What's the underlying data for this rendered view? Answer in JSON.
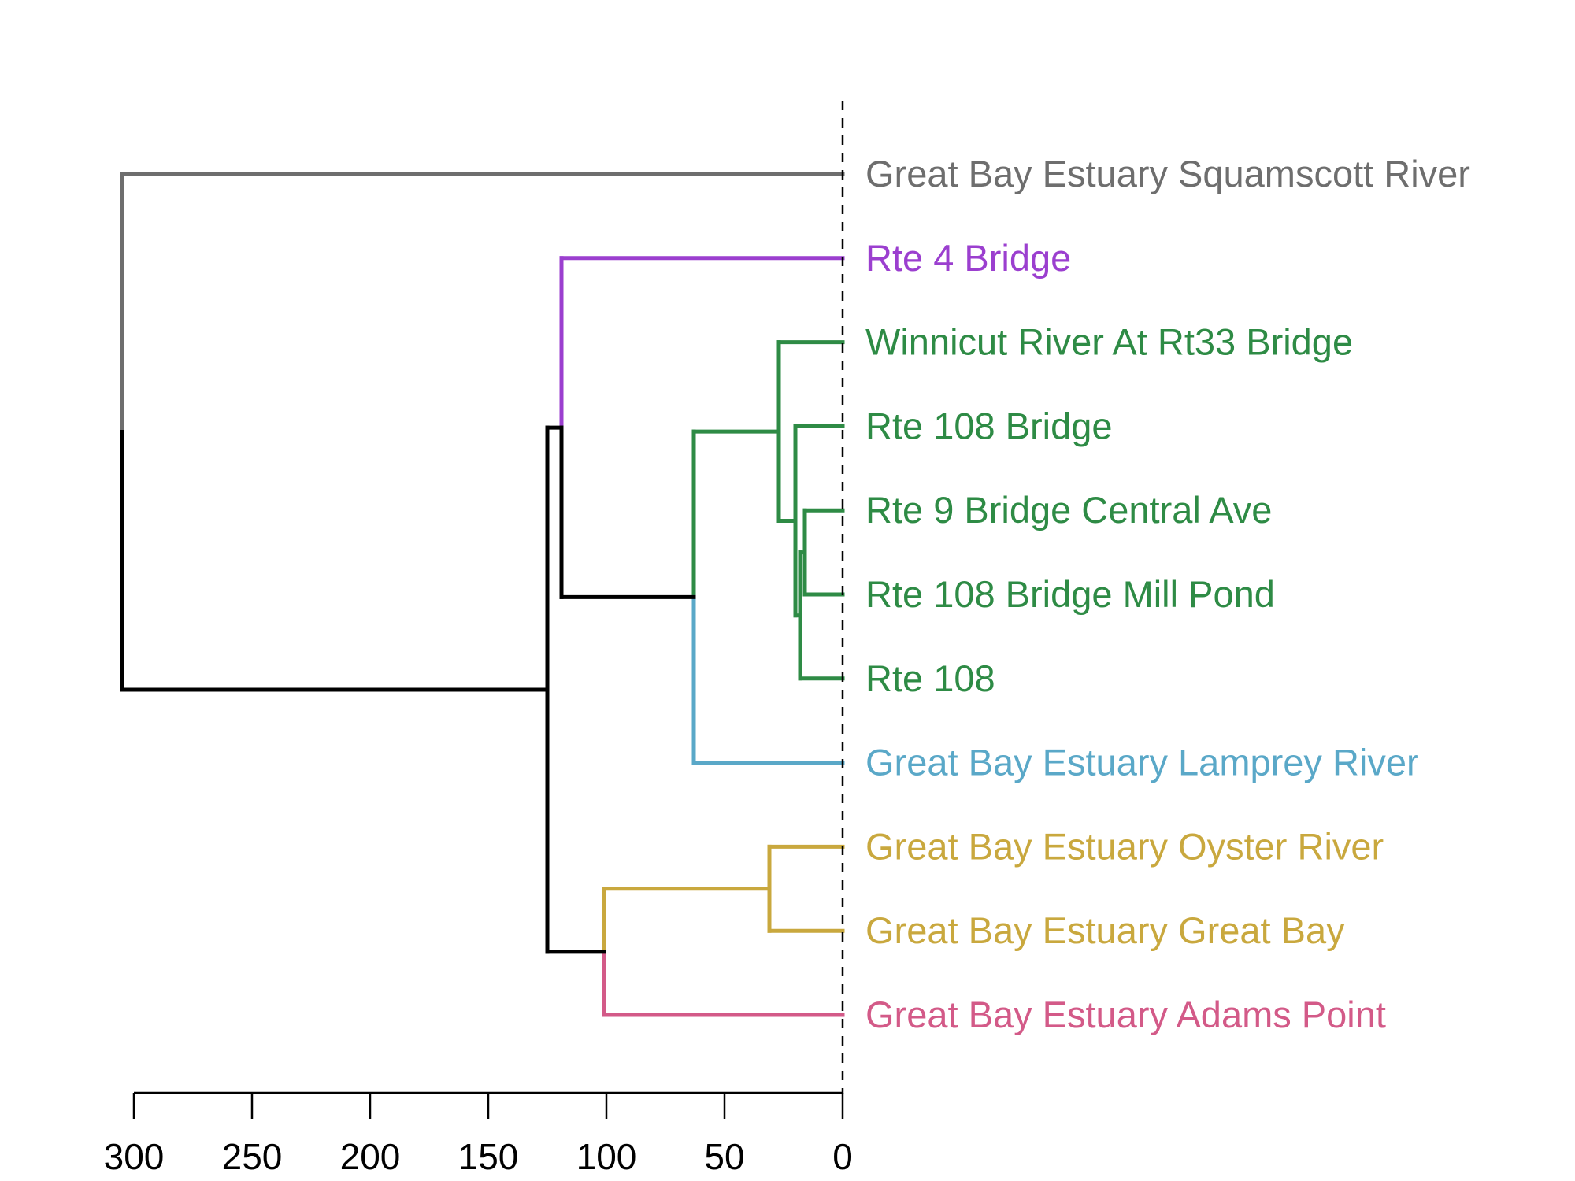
{
  "chart_data": {
    "type": "dendrogram",
    "orientation": "horizontal",
    "xlim": [
      0,
      300
    ],
    "x_ticks": [
      {
        "value": 300,
        "label": "300"
      },
      {
        "value": 250,
        "label": "250"
      },
      {
        "value": 200,
        "label": "200"
      },
      {
        "value": 150,
        "label": "150"
      },
      {
        "value": 100,
        "label": "100"
      },
      {
        "value": 50,
        "label": "50"
      },
      {
        "value": 0,
        "label": "0"
      }
    ],
    "cut_line": {
      "value": 0,
      "style": "dashed"
    },
    "leaves": [
      {
        "label": "Great Bay Estuary Squamscott River",
        "color": "#6e6e6e"
      },
      {
        "label": "Rte 4 Bridge",
        "color": "#9b3fcf"
      },
      {
        "label": "Winnicut River At Rt33 Bridge",
        "color": "#2e8b45"
      },
      {
        "label": "Rte 108 Bridge",
        "color": "#2e8b45"
      },
      {
        "label": "Rte 9 Bridge Central Ave",
        "color": "#2e8b45"
      },
      {
        "label": "Rte 108 Bridge Mill Pond",
        "color": "#2e8b45"
      },
      {
        "label": "Rte 108",
        "color": "#2e8b45"
      },
      {
        "label": "Great Bay Estuary Lamprey River",
        "color": "#5aa8c8"
      },
      {
        "label": "Great Bay Estuary Oyster River",
        "color": "#c9a83e"
      },
      {
        "label": "Great Bay Estuary Great Bay",
        "color": "#c9a83e"
      },
      {
        "label": "Great Bay Estuary Adams Point",
        "color": "#d35a88"
      }
    ],
    "merges": [
      {
        "id": "m1",
        "children": [
          "Rte 9 Bridge Central Ave",
          "Rte 108 Bridge Mill Pond"
        ],
        "height": 16,
        "color": "#2e8b45"
      },
      {
        "id": "m2",
        "children": [
          "m1",
          "Rte 108"
        ],
        "height": 18,
        "color": "#2e8b45"
      },
      {
        "id": "m3",
        "children": [
          "Rte 108 Bridge",
          "m2"
        ],
        "height": 20,
        "color": "#2e8b45"
      },
      {
        "id": "m4",
        "children": [
          "Winnicut River At Rt33 Bridge",
          "m3"
        ],
        "height": 27,
        "color": "#2e8b45"
      },
      {
        "id": "m5",
        "children": [
          "Great Bay Estuary Oyster River",
          "Great Bay Estuary Great Bay"
        ],
        "height": 31,
        "color": "#c9a83e"
      },
      {
        "id": "m6",
        "children": [
          "m4",
          "Great Bay Estuary Lamprey River"
        ],
        "height": 63,
        "color": "mixed"
      },
      {
        "id": "m7",
        "children": [
          "m5",
          "Great Bay Estuary Adams Point"
        ],
        "height": 101,
        "color": "mixed"
      },
      {
        "id": "m8",
        "children": [
          "Rte 4 Bridge",
          "m6"
        ],
        "height": 119,
        "color": "mixed"
      },
      {
        "id": "m9",
        "children": [
          "m8",
          "m7"
        ],
        "height": 125,
        "color": "#000000"
      },
      {
        "id": "m10",
        "children": [
          "Great Bay Estuary Squamscott River",
          "m9"
        ],
        "height": 305,
        "color": "mixed"
      }
    ],
    "branch_colors": {
      "root_link": "#000000",
      "squamscott": "#6e6e6e",
      "rte4": "#9b3fcf",
      "green_cluster": "#2e8b45",
      "lamprey": "#5aa8c8",
      "yellow_cluster": "#c9a83e",
      "adams": "#d35a88"
    }
  }
}
